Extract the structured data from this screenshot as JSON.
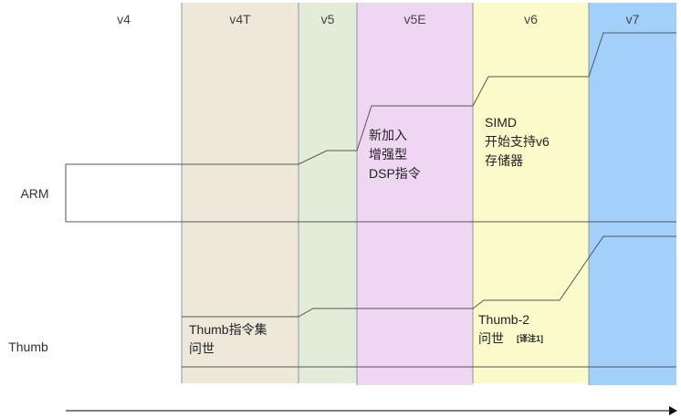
{
  "columns": [
    {
      "label": "v4",
      "color": "#ffffff"
    },
    {
      "label": "v4T",
      "color": "#ede8da"
    },
    {
      "label": "v5",
      "color": "#e2ecd9"
    },
    {
      "label": "v5E",
      "color": "#efd7f3"
    },
    {
      "label": "v6",
      "color": "#fbfacb"
    },
    {
      "label": "v7",
      "color": "#a3cffb"
    }
  ],
  "rows": {
    "arm": "ARM",
    "thumb": "Thumb"
  },
  "notes": {
    "v5e": [
      "新加入",
      "增强型",
      "DSP指令"
    ],
    "v6": [
      "SIMD",
      "开始支持v6",
      "存储器"
    ],
    "thumb": [
      "Thumb指令集",
      "问世"
    ],
    "thumb2": [
      "Thumb-2",
      "问世"
    ],
    "thumb2_footnote": "[译注1]"
  }
}
